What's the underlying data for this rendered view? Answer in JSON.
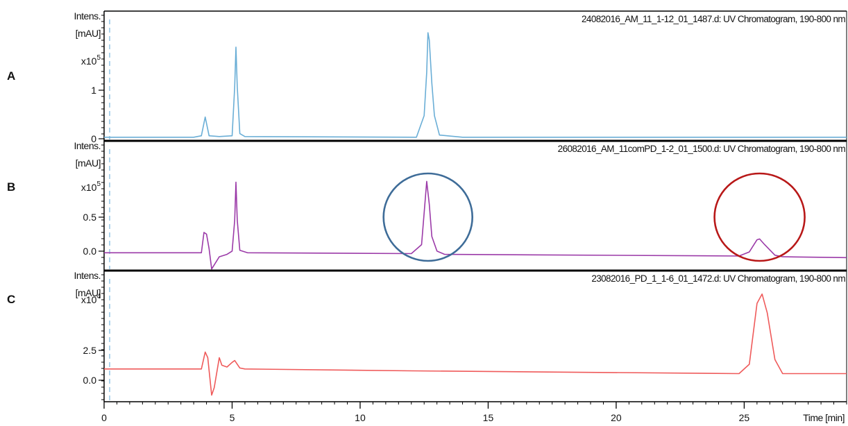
{
  "colors": {
    "panel_a_trace": "#6aaed6",
    "panel_b_trace": "#9b3aa8",
    "panel_c_trace": "#ef5a5a",
    "blue_circle": "#3e6c98",
    "red_circle": "#b81818"
  },
  "chart_data": [
    {
      "panel": "A",
      "type": "line",
      "title": "24082016_AM_11_1-12_01_1487.d: UV Chromatogram, 190-800 nm",
      "ylabel_lines": [
        "Intens.",
        "[mAU]"
      ],
      "scale_label": "x10",
      "scale_exp": "5",
      "yticks": [
        "1",
        "0"
      ],
      "ylim": [
        -0.05,
        1.75
      ],
      "xlim": [
        0,
        29
      ],
      "x": [
        0,
        3.5,
        3.8,
        3.95,
        4.1,
        4.5,
        5.0,
        5.1,
        5.15,
        5.2,
        5.3,
        5.5,
        12.2,
        12.5,
        12.6,
        12.65,
        12.7,
        12.8,
        12.9,
        13.1,
        14.0,
        29
      ],
      "y": [
        0,
        0,
        0.02,
        0.28,
        0.02,
        0.01,
        0.02,
        0.7,
        1.25,
        0.7,
        0.05,
        0.01,
        0,
        0.3,
        0.9,
        1.45,
        1.35,
        0.75,
        0.3,
        0.03,
        0,
        0
      ]
    },
    {
      "panel": "B",
      "type": "line",
      "title": "26082016_AM_11comPD_1-2_01_1500.d: UV Chromatogram, 190-800 nm",
      "ylabel_lines": [
        "Intens.",
        "[mAU]"
      ],
      "scale_label": "x10",
      "scale_exp": "5",
      "yticks": [
        "0.5",
        "0.0"
      ],
      "ylim": [
        -0.22,
        1.38
      ],
      "xlim": [
        0,
        29
      ],
      "x": [
        0,
        3.8,
        3.9,
        4.0,
        4.1,
        4.2,
        4.3,
        4.5,
        4.8,
        5.0,
        5.1,
        5.15,
        5.2,
        5.3,
        5.6,
        12.0,
        12.4,
        12.6,
        12.7,
        12.8,
        13.0,
        13.3,
        24.8,
        25.2,
        25.5,
        25.6,
        25.8,
        26.2,
        26.5,
        29
      ],
      "y": [
        0,
        0,
        0.25,
        0.23,
        0.05,
        -0.2,
        -0.15,
        -0.05,
        -0.02,
        0.02,
        0.4,
        0.87,
        0.4,
        0.03,
        0,
        -0.01,
        0.1,
        0.88,
        0.6,
        0.2,
        0.02,
        -0.02,
        -0.04,
        0.01,
        0.16,
        0.17,
        0.1,
        -0.03,
        -0.05,
        -0.06
      ]
    },
    {
      "panel": "C",
      "type": "line",
      "title": "23082016_PD_1_1-6_01_1472.d: UV Chromatogram, 190-800 nm",
      "ylabel_lines": [
        "Intens.",
        "[mAU]"
      ],
      "scale_label": "x10",
      "scale_exp": "4",
      "yticks": [
        "2.5",
        "0.0"
      ],
      "ylim": [
        -3.5,
        10.5
      ],
      "xlim": [
        0,
        29
      ],
      "x": [
        0,
        3.8,
        3.95,
        4.05,
        4.2,
        4.3,
        4.5,
        4.6,
        4.8,
        5.0,
        5.1,
        5.3,
        5.5,
        12.0,
        24.8,
        25.2,
        25.5,
        25.7,
        25.9,
        26.2,
        26.5,
        29
      ],
      "y": [
        0,
        0,
        1.8,
        1.2,
        -2.8,
        -2.0,
        1.2,
        0.4,
        0.2,
        0.7,
        0.9,
        0.1,
        0,
        -0.2,
        -0.5,
        0.5,
        7.0,
        8.0,
        6.0,
        1.0,
        -0.5,
        -0.5
      ]
    }
  ],
  "x_axis": {
    "ticks": [
      0,
      5,
      10,
      15,
      20,
      25
    ],
    "tick_labels": [
      "0",
      "5",
      "10",
      "15",
      "20",
      "25"
    ],
    "label": "Time [min]"
  },
  "annotations": [
    {
      "shape": "circle",
      "color_key": "blue_circle",
      "panel": "B",
      "around_peak_min": 12.65
    },
    {
      "shape": "circle",
      "color_key": "red_circle",
      "panel": "B",
      "around_peak_min": 25.6
    }
  ]
}
